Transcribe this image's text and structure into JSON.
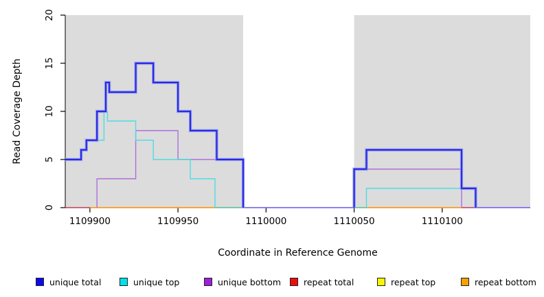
{
  "chart_data": {
    "type": "line",
    "step": true,
    "title": "",
    "xlabel": "Coordinate in Reference Genome",
    "ylabel": "Read Coverage Depth",
    "xlim": [
      1109886,
      1110150
    ],
    "ylim": [
      0,
      20
    ],
    "x_ticks": [
      1109900,
      1109950,
      1110000,
      1110050,
      1110100
    ],
    "y_ticks": [
      0,
      5,
      10,
      15,
      20
    ],
    "grid": false,
    "background_color": "#ffffff",
    "shaded_region_color": "#dcdcdc",
    "shaded_regions": [
      {
        "from": 1109886,
        "to": 1109987
      },
      {
        "from": 1110050,
        "to": 1110150
      }
    ],
    "series": [
      {
        "name": "unique total",
        "color": "#2a2ae2",
        "halo_color": "#9aa3ee",
        "width": 2.2,
        "runs": [
          [
            [
              1109886,
              5
            ],
            [
              1109895,
              6
            ],
            [
              1109898,
              7
            ],
            [
              1109904,
              10
            ],
            [
              1109909,
              13
            ],
            [
              1109911,
              12
            ],
            [
              1109926,
              15
            ],
            [
              1109936,
              13
            ],
            [
              1109950,
              10
            ],
            [
              1109957,
              8
            ],
            [
              1109972,
              5
            ],
            [
              1109987,
              0
            ]
          ],
          [
            [
              1110050,
              0
            ],
            [
              1110050,
              4
            ],
            [
              1110057,
              6
            ],
            [
              1110111,
              2
            ],
            [
              1110119,
              0
            ]
          ]
        ]
      },
      {
        "name": "unique top",
        "color": "#4edce2",
        "width": 1.4,
        "runs": [
          [
            [
              1109886,
              5
            ],
            [
              1109895,
              6
            ],
            [
              1109898,
              7
            ],
            [
              1109908,
              10
            ],
            [
              1109910,
              9
            ],
            [
              1109926,
              7
            ],
            [
              1109936,
              5
            ],
            [
              1109957,
              3
            ],
            [
              1109971,
              0
            ]
          ],
          [
            [
              1110057,
              0
            ],
            [
              1110057,
              2
            ],
            [
              1110119,
              0
            ]
          ]
        ]
      },
      {
        "name": "unique bottom",
        "color": "#ab6ed8",
        "width": 1.4,
        "runs": [
          [
            [
              1109904,
              0
            ],
            [
              1109904,
              3
            ],
            [
              1109926,
              8
            ],
            [
              1109950,
              5
            ],
            [
              1109987,
              0
            ]
          ],
          [
            [
              1110050,
              0
            ],
            [
              1110050,
              4
            ],
            [
              1110111,
              0
            ]
          ]
        ]
      },
      {
        "name": "repeat total",
        "color": "#e90f0f",
        "width": 1.4,
        "runs": []
      },
      {
        "name": "repeat top",
        "color": "#f6f600",
        "width": 1.4,
        "runs": []
      },
      {
        "name": "repeat bottom",
        "color": "#f5a100",
        "width": 1.4,
        "runs": []
      }
    ],
    "zero_line_segments": [
      {
        "from": 1109886,
        "to": 1109900,
        "color": "#c23b55"
      },
      {
        "from": 1109900,
        "to": 1109971,
        "color": "#ff8c00"
      },
      {
        "from": 1109971,
        "to": 1109987,
        "color": "#53bd90"
      },
      {
        "from": 1109987,
        "to": 1110050,
        "color": "#675ae8"
      },
      {
        "from": 1110050,
        "to": 1110057,
        "color": "#53bd90"
      },
      {
        "from": 1110057,
        "to": 1110111,
        "color": "#ff8c00"
      },
      {
        "from": 1110111,
        "to": 1110119,
        "color": "#c2386a"
      },
      {
        "from": 1110119,
        "to": 1110150,
        "color": "#675ae8"
      }
    ],
    "legend": [
      {
        "label": "unique total",
        "color": "#0b0bea"
      },
      {
        "label": "unique top",
        "color": "#00e1ea"
      },
      {
        "label": "unique bottom",
        "color": "#9f1fd6"
      },
      {
        "label": "repeat total",
        "color": "#e90f0f"
      },
      {
        "label": "repeat top",
        "color": "#f6f600"
      },
      {
        "label": "repeat bottom",
        "color": "#f5a100"
      }
    ],
    "legend_position": "bottom"
  }
}
